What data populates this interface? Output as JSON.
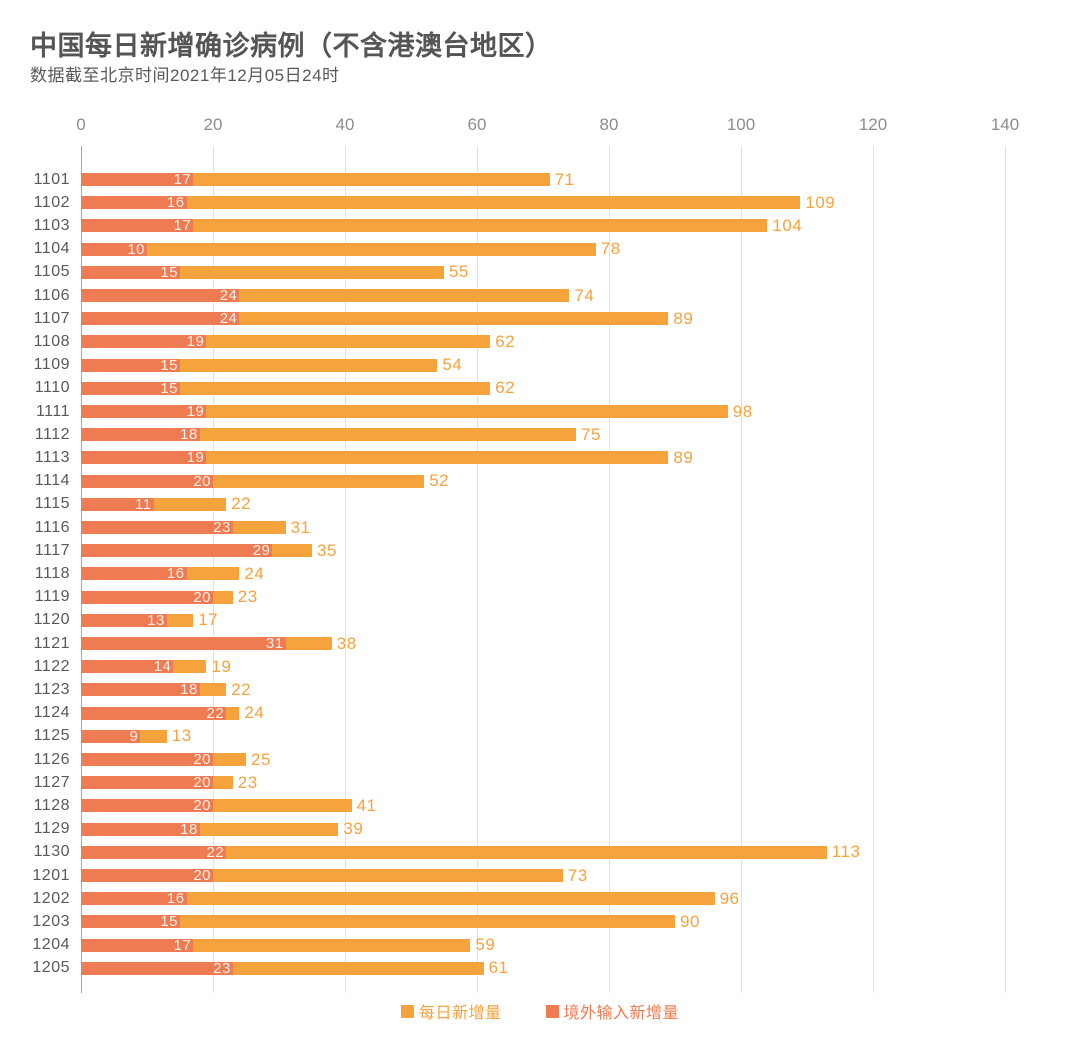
{
  "header": {
    "title": "中国每日新增确诊病例（不含港澳台地区）",
    "subtitle": "数据截至北京时间2021年12月05日24时"
  },
  "colors": {
    "daily": "#F5A33D",
    "imported": "#EE7B51",
    "axis_text": "#8C8C8C",
    "date_text": "#595959",
    "gridline": "#E2E2E2",
    "axis_line": "#A8A8A8"
  },
  "chart_data": {
    "type": "bar",
    "orientation": "horizontal",
    "title": "中国每日新增确诊病例（不含港澳台地区）",
    "subtitle": "数据截至北京时间2021年12月05日24时",
    "xlabel": "",
    "ylabel": "",
    "x_axis": {
      "position": "top",
      "lim": [
        0,
        140
      ],
      "ticks": [
        0,
        20,
        40,
        60,
        80,
        100,
        120,
        140
      ]
    },
    "grid": true,
    "legend_position": "bottom",
    "categories": [
      "1101",
      "1102",
      "1103",
      "1104",
      "1105",
      "1106",
      "1107",
      "1108",
      "1109",
      "1110",
      "1111",
      "1112",
      "1113",
      "1114",
      "1115",
      "1116",
      "1117",
      "1118",
      "1119",
      "1120",
      "1121",
      "1122",
      "1123",
      "1124",
      "1125",
      "1126",
      "1127",
      "1128",
      "1129",
      "1130",
      "1201",
      "1202",
      "1203",
      "1204",
      "1205"
    ],
    "series": [
      {
        "name": "每日新增量",
        "color": "#F5A33D",
        "values": [
          71,
          109,
          104,
          78,
          55,
          74,
          89,
          62,
          54,
          62,
          98,
          75,
          89,
          52,
          22,
          31,
          35,
          24,
          23,
          17,
          38,
          19,
          22,
          24,
          13,
          25,
          23,
          41,
          39,
          113,
          73,
          96,
          90,
          59,
          61
        ]
      },
      {
        "name": "境外输入新增量",
        "color": "#EE7B51",
        "values": [
          17,
          16,
          17,
          10,
          15,
          24,
          24,
          19,
          15,
          15,
          19,
          18,
          19,
          20,
          11,
          23,
          29,
          16,
          20,
          13,
          31,
          14,
          18,
          22,
          9,
          20,
          20,
          20,
          18,
          22,
          20,
          16,
          15,
          17,
          23
        ]
      }
    ]
  }
}
